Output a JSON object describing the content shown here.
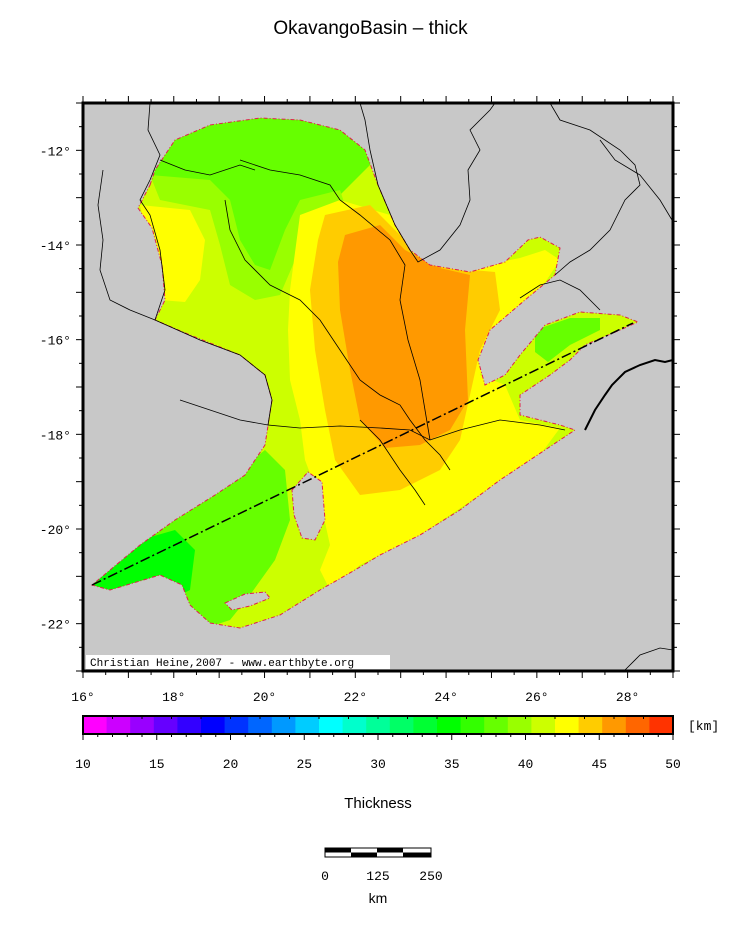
{
  "title": "OkavangoBasin – thick",
  "credit": "Christian Heine,2007 - www.earthbyte.org",
  "map": {
    "lon_range": [
      16,
      29
    ],
    "lat_range": [
      -23,
      -11
    ],
    "lon_ticks": [
      "16°",
      "18°",
      "20°",
      "22°",
      "24°",
      "26°",
      "28°"
    ],
    "lat_ticks": [
      "-12°",
      "-14°",
      "-16°",
      "-18°",
      "-20°",
      "-22°"
    ],
    "land_color": "#c8c8c8",
    "basin_outline_color": "#e0204a",
    "profile_line": {
      "from": [
        16.2,
        -21.3
      ],
      "to": [
        27.9,
        -15.6
      ]
    }
  },
  "colorbar": {
    "unit": "[km]",
    "label": "Thickness",
    "ticks": [
      "10",
      "15",
      "20",
      "25",
      "30",
      "35",
      "40",
      "45",
      "50"
    ],
    "range": [
      10,
      50
    ],
    "colors": [
      "#ff00ff",
      "#cc00ff",
      "#9900ff",
      "#6600ff",
      "#3300ff",
      "#0000ff",
      "#0033ff",
      "#0066ff",
      "#0099ff",
      "#00ccff",
      "#00ffff",
      "#00ffcc",
      "#00ff99",
      "#00ff66",
      "#00ff33",
      "#00ff00",
      "#33ff00",
      "#66ff00",
      "#99ff00",
      "#ccff00",
      "#ffff00",
      "#ffcc00",
      "#ff9900",
      "#ff6600",
      "#ff3300"
    ]
  },
  "scale_bar": {
    "ticks": [
      "0",
      "125",
      "250"
    ],
    "unit": "km"
  }
}
